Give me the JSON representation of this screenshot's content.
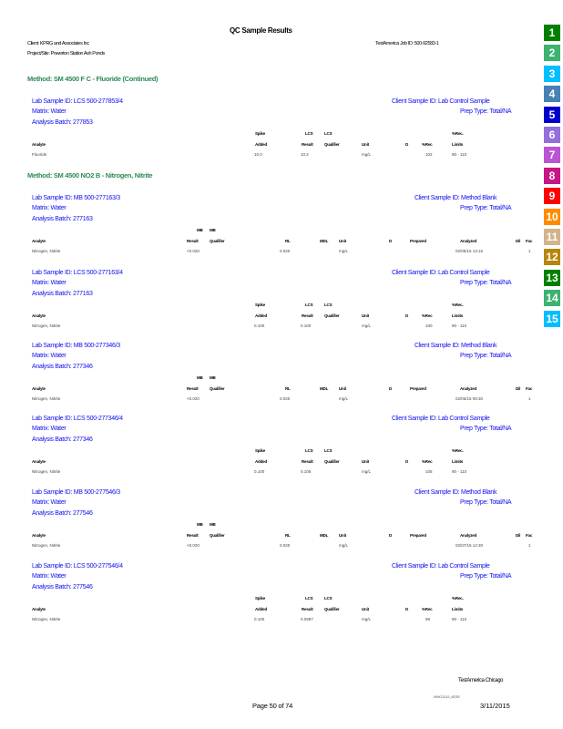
{
  "header": {
    "title": "QC     Sample       Results",
    "client": "Client: KPRG and Associates Inc",
    "project": "Project/Site: Powerton Station Ash Ponds",
    "job_id": "TestAmerica Job ID: 500-92583-1"
  },
  "methods": [
    {
      "label": "Method:     SM   4500    F  C  -  Fluoride        (Continued)"
    },
    {
      "label": "Method:     SM   4500    NO2    B  -  Nitrogen,         Nitrite"
    }
  ],
  "mb_columns": {
    "top1": "MB",
    "top2": "MB",
    "analyte": "Analyte",
    "result": "Result",
    "qualifier": "Qualifier",
    "rl": "RL",
    "mdl": "MDL",
    "unit": "Unit",
    "d": "D",
    "prepared": "Prepared",
    "analyzed": "Analyzed",
    "dil": "Dil",
    "fac": "Fac"
  },
  "lcs_columns": {
    "spike": "Spike",
    "lcs1": "LCS",
    "lcs2": "LCS",
    "rec_top": "%Rec.",
    "analyte": "Analyte",
    "added": "Added",
    "result": "Result",
    "qualifier": "Qualifier",
    "unit": "Unit",
    "d": "D",
    "rec": "%Rec",
    "limits": "Limits"
  },
  "sections": [
    {
      "type": "lcs",
      "lab_sample_id": "Lab    Sample     ID:   LCS    500-277853/4",
      "client_sample_id": "Client      Sample     ID:  Lab   Control       Sample",
      "matrix": "Matrix:      Water",
      "prep_type": "Prep    Type:      Total/NA",
      "batch": "Analysis       Batch:      277853",
      "row": {
        "analyte": "Fluoride",
        "added": "10.0",
        "result": "10.2",
        "qualifier": "",
        "unit": "mg/L",
        "d": "",
        "rec": "102",
        "limits": "90  -  110"
      }
    },
    {
      "type": "mb",
      "lab_sample_id": "Lab    Sample     ID:   MB   500-277163/3",
      "client_sample_id": "Client      Sample     ID:   Method       Blank",
      "matrix": "Matrix:      Water",
      "prep_type": "Prep    Type:      Total/NA",
      "batch": "Analysis       Batch:      277163",
      "row": {
        "analyte": "Nitrogen, Nitrite",
        "result": "<0.020",
        "qualifier": "",
        "rl": "0.020",
        "mdl": "",
        "unit": "mg/L",
        "d": "",
        "prepared": "",
        "analyzed": "02/05/15 13:15",
        "dil": "1"
      }
    },
    {
      "type": "lcs",
      "lab_sample_id": "Lab    Sample     ID:   LCS    500-277163/4",
      "client_sample_id": "Client      Sample     ID:  Lab   Control       Sample",
      "matrix": "Matrix:      Water",
      "prep_type": "Prep    Type:      Total/NA",
      "batch": "Analysis       Batch:      277163",
      "row": {
        "analyte": "Nitrogen, Nitrite",
        "added": "0.100",
        "result": "0.100",
        "qualifier": "",
        "unit": "mg/L",
        "d": "",
        "rec": "100",
        "limits": "90  -  110"
      }
    },
    {
      "type": "mb",
      "lab_sample_id": "Lab    Sample     ID:   MB   500-277346/3",
      "client_sample_id": "Client      Sample     ID:   Method       Blank",
      "matrix": "Matrix:      Water",
      "prep_type": "Prep    Type:      Total/NA",
      "batch": "Analysis       Batch:      277346",
      "row": {
        "analyte": "Nitrogen, Nitrite",
        "result": "<0.020",
        "qualifier": "",
        "rl": "0.020",
        "mdl": "",
        "unit": "mg/L",
        "d": "",
        "prepared": "",
        "analyzed": "02/06/15 09:30",
        "dil": "1"
      }
    },
    {
      "type": "lcs",
      "lab_sample_id": "Lab    Sample     ID:   LCS    500-277346/4",
      "client_sample_id": "Client      Sample     ID:  Lab   Control       Sample",
      "matrix": "Matrix:      Water",
      "prep_type": "Prep    Type:      Total/NA",
      "batch": "Analysis       Batch:      277346",
      "row": {
        "analyte": "Nitrogen, Nitrite",
        "added": "0.100",
        "result": "0.105",
        "qualifier": "",
        "unit": "mg/L",
        "d": "",
        "rec": "105",
        "limits": "90  -  110"
      }
    },
    {
      "type": "mb",
      "lab_sample_id": "Lab    Sample     ID:   MB   500-277546/3",
      "client_sample_id": "Client      Sample     ID:   Method       Blank",
      "matrix": "Matrix:      Water",
      "prep_type": "Prep    Type:      Total/NA",
      "batch": "Analysis       Batch:      277546",
      "row": {
        "analyte": "Nitrogen, Nitrite",
        "result": "<0.020",
        "qualifier": "",
        "rl": "0.020",
        "mdl": "",
        "unit": "mg/L",
        "d": "",
        "prepared": "",
        "analyzed": "02/07/15 14:30",
        "dil": "1"
      }
    },
    {
      "type": "lcs",
      "lab_sample_id": "Lab    Sample     ID:   LCS    500-277546/4",
      "client_sample_id": "Client      Sample     ID:  Lab   Control       Sample",
      "matrix": "Matrix:      Water",
      "prep_type": "Prep    Type:      Total/NA",
      "batch": "Analysis       Batch:      277546",
      "row": {
        "analyte": "Nitrogen, Nitrite",
        "added": "0.100",
        "result": "0.0987",
        "qualifier": "",
        "unit": "mg/L",
        "d": "",
        "rec": "99",
        "limits": "90  -  110"
      }
    }
  ],
  "footer": {
    "lab": "TestAmerica Chicago",
    "doc_code": "MWG13-15_45783",
    "page": "Page    50   of   74",
    "date": "3/11/2015"
  },
  "tabs": [
    {
      "label": "1",
      "color": "#008000"
    },
    {
      "label": "2",
      "color": "#3cb371"
    },
    {
      "label": "3",
      "color": "#00bfff"
    },
    {
      "label": "4",
      "color": "#4682b4"
    },
    {
      "label": "5",
      "color": "#0000cd"
    },
    {
      "label": "6",
      "color": "#9370db"
    },
    {
      "label": "7",
      "color": "#ba55d3"
    },
    {
      "label": "8",
      "color": "#c71585"
    },
    {
      "label": "9",
      "color": "#ff0000"
    },
    {
      "label": "10",
      "color": "#ff8c00"
    },
    {
      "label": "11",
      "color": "#d2b48c"
    },
    {
      "label": "12",
      "color": "#b8860b"
    },
    {
      "label": "13",
      "color": "#008000"
    },
    {
      "label": "14",
      "color": "#3cb371"
    },
    {
      "label": "15",
      "color": "#00bfff"
    }
  ]
}
